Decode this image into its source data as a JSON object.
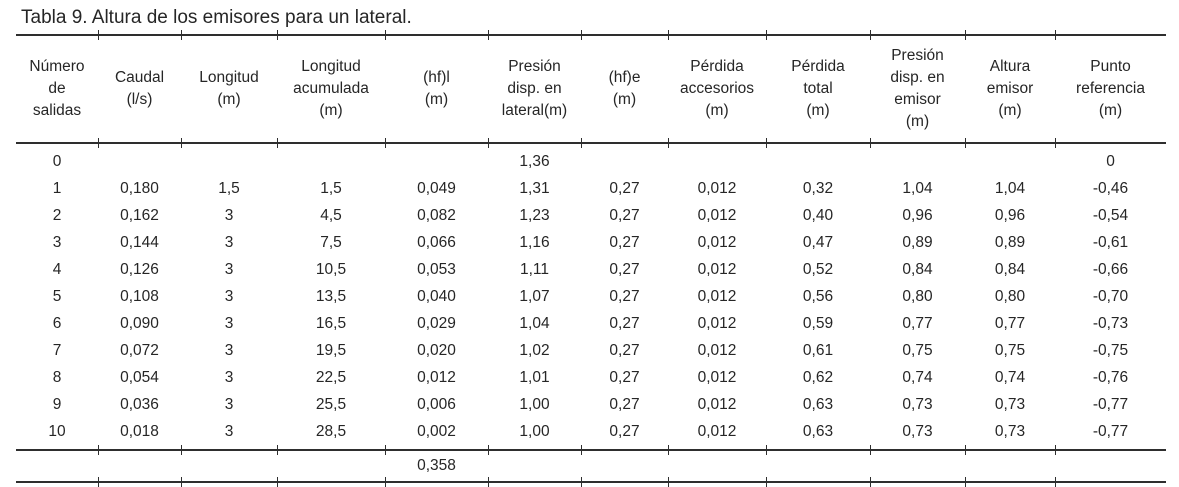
{
  "title": "Tabla 9. Altura de los emisores para un lateral.",
  "colors": {
    "text": "#262626",
    "line": "#2e2e2e",
    "background": "#ffffff"
  },
  "table": {
    "columns": [
      "Número\nde\nsalidas",
      "Caudal\n(l/s)",
      "Longitud\n(m)",
      "Longitud\nacumulada\n(m)",
      "(hf)l\n(m)",
      "Presión\ndisp. en\nlateral(m)",
      "(hf)e\n(m)",
      "Pérdida\naccesorios\n(m)",
      "Pérdida\ntotal\n(m)",
      "Presión\ndisp. en\nemisor\n(m)",
      "Altura\nemisor\n(m)",
      "Punto\nreferencia\n(m)"
    ],
    "rows": [
      [
        "0",
        "",
        "",
        "",
        "",
        "1,36",
        "",
        "",
        "",
        "",
        "",
        "0"
      ],
      [
        "1",
        "0,180",
        "1,5",
        "1,5",
        "0,049",
        "1,31",
        "0,27",
        "0,012",
        "0,32",
        "1,04",
        "1,04",
        "-0,46"
      ],
      [
        "2",
        "0,162",
        "3",
        "4,5",
        "0,082",
        "1,23",
        "0,27",
        "0,012",
        "0,40",
        "0,96",
        "0,96",
        "-0,54"
      ],
      [
        "3",
        "0,144",
        "3",
        "7,5",
        "0,066",
        "1,16",
        "0,27",
        "0,012",
        "0,47",
        "0,89",
        "0,89",
        "-0,61"
      ],
      [
        "4",
        "0,126",
        "3",
        "10,5",
        "0,053",
        "1,11",
        "0,27",
        "0,012",
        "0,52",
        "0,84",
        "0,84",
        "-0,66"
      ],
      [
        "5",
        "0,108",
        "3",
        "13,5",
        "0,040",
        "1,07",
        "0,27",
        "0,012",
        "0,56",
        "0,80",
        "0,80",
        "-0,70"
      ],
      [
        "6",
        "0,090",
        "3",
        "16,5",
        "0,029",
        "1,04",
        "0,27",
        "0,012",
        "0,59",
        "0,77",
        "0,77",
        "-0,73"
      ],
      [
        "7",
        "0,072",
        "3",
        "19,5",
        "0,020",
        "1,02",
        "0,27",
        "0,012",
        "0,61",
        "0,75",
        "0,75",
        "-0,75"
      ],
      [
        "8",
        "0,054",
        "3",
        "22,5",
        "0,012",
        "1,01",
        "0,27",
        "0,012",
        "0,62",
        "0,74",
        "0,74",
        "-0,76"
      ],
      [
        "9",
        "0,036",
        "3",
        "25,5",
        "0,006",
        "1,00",
        "0,27",
        "0,012",
        "0,63",
        "0,73",
        "0,73",
        "-0,77"
      ],
      [
        "10",
        "0,018",
        "3",
        "28,5",
        "0,002",
        "1,00",
        "0,27",
        "0,012",
        "0,63",
        "0,73",
        "0,73",
        "-0,77"
      ]
    ],
    "footer": {
      "hf_l_sum": "0,358"
    }
  }
}
